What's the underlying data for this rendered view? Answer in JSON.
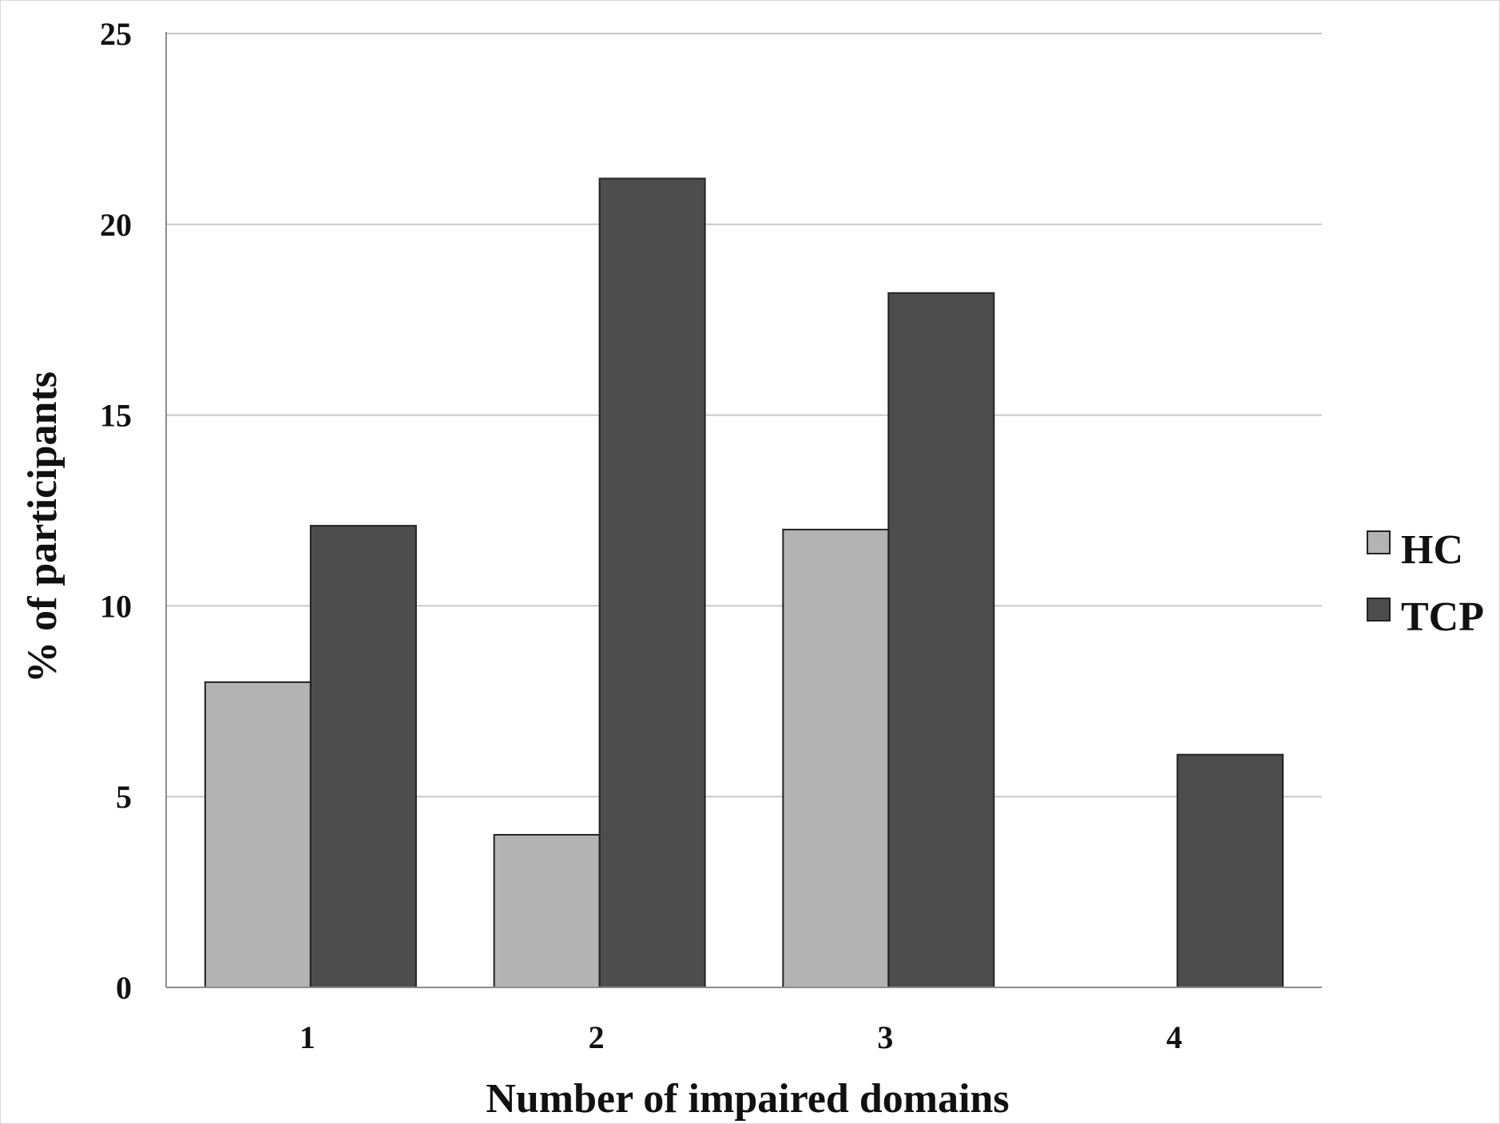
{
  "chart_data": {
    "type": "bar",
    "title": "",
    "xlabel": "Number of impaired domains",
    "ylabel": "% of participants",
    "categories": [
      "1",
      "2",
      "3",
      "4"
    ],
    "ylim": [
      0,
      25
    ],
    "yticks": [
      0,
      5,
      10,
      15,
      20,
      25
    ],
    "grid": true,
    "legend_position": "right",
    "series": [
      {
        "name": "HC",
        "color": "#b3b3b3",
        "values": [
          8,
          4,
          12,
          0
        ]
      },
      {
        "name": "TCP",
        "color": "#4d4d4d",
        "values": [
          12.1,
          21.2,
          18.2,
          6.1
        ]
      }
    ]
  }
}
